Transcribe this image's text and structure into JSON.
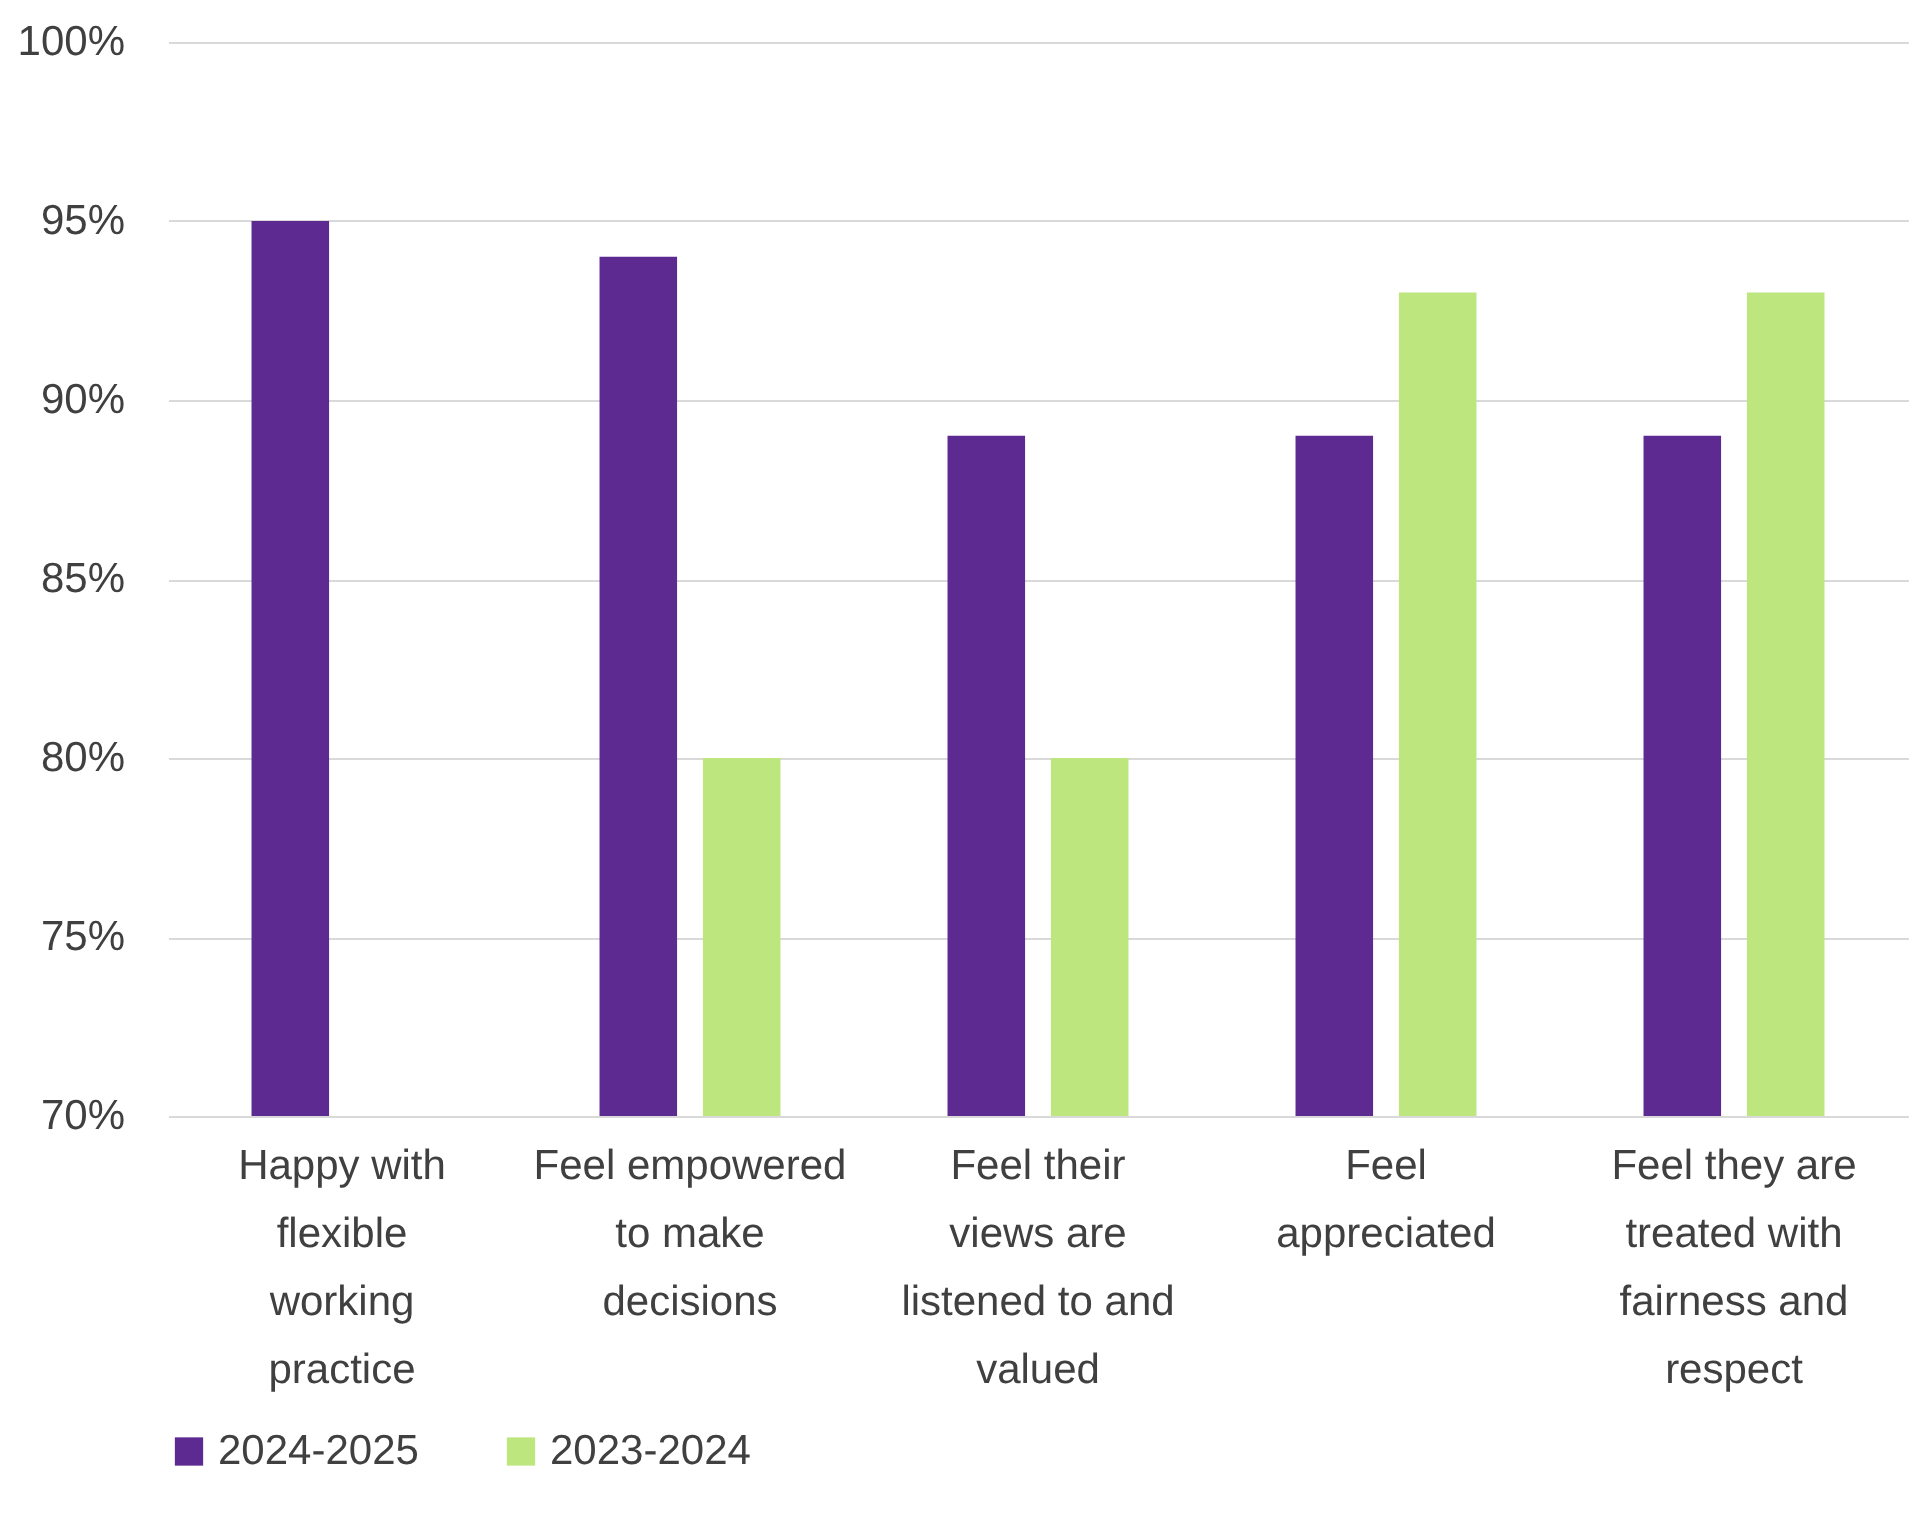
{
  "chart_data": {
    "type": "bar",
    "categories": [
      "Happy with flexible working practice",
      "Feel empowered to make decisions",
      "Feel their views are listened to and valued",
      "Feel appreciated",
      "Feel they are treated with fairness and respect"
    ],
    "series": [
      {
        "name": "2024-2025",
        "color": "#5c2a91",
        "values": [
          95,
          94,
          89,
          89,
          89
        ]
      },
      {
        "name": "2023-2024",
        "color": "#bde67f",
        "values": [
          null,
          80,
          80,
          93,
          93
        ]
      }
    ],
    "ylim": [
      70,
      100
    ],
    "yticks": [
      {
        "value": 70,
        "label": "70%"
      },
      {
        "value": 75,
        "label": "75%"
      },
      {
        "value": 80,
        "label": "80%"
      },
      {
        "value": 85,
        "label": "85%"
      },
      {
        "value": 90,
        "label": "90%"
      },
      {
        "value": 95,
        "label": "95%"
      },
      {
        "value": 100,
        "label": "100%"
      }
    ],
    "grid": "y",
    "legend": "bottom"
  }
}
